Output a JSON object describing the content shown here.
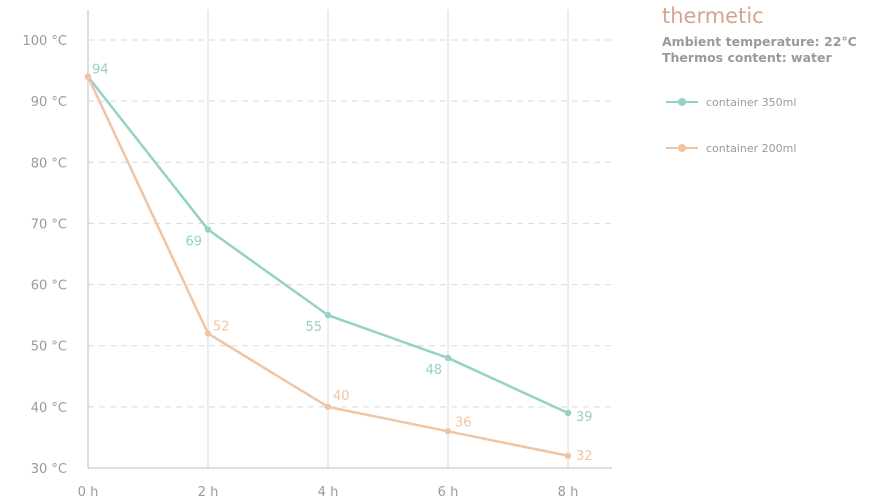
{
  "brand": "thermetic",
  "info": {
    "ambient": "Ambient temperature: 22°C",
    "content": "Thermos content: water"
  },
  "colors": {
    "series_350": "#94d1c7",
    "series_200": "#efc5a4",
    "brand": "#d4a58e",
    "grid": "#d9d9d9",
    "text": "#9a9a9a"
  },
  "chart_data": {
    "type": "line",
    "x": [
      "0 h",
      "2 h",
      "4 h",
      "6 h",
      "8 h"
    ],
    "ylim": [
      30,
      100
    ],
    "yticks": [
      "30 °C",
      "40 °C",
      "50 °C",
      "60 °C",
      "70 °C",
      "80 °C",
      "90 °C",
      "100 °C"
    ],
    "grid": true,
    "legend_position": "top-right",
    "series": [
      {
        "name": "container 350ml",
        "values": [
          94,
          69,
          55,
          48,
          39
        ],
        "labels": [
          "94",
          "69",
          "55",
          "48",
          "39"
        ]
      },
      {
        "name": "container 200ml",
        "values": [
          94,
          52,
          40,
          36,
          32
        ],
        "labels": [
          "",
          "52",
          "40",
          "36",
          "32"
        ]
      }
    ]
  }
}
